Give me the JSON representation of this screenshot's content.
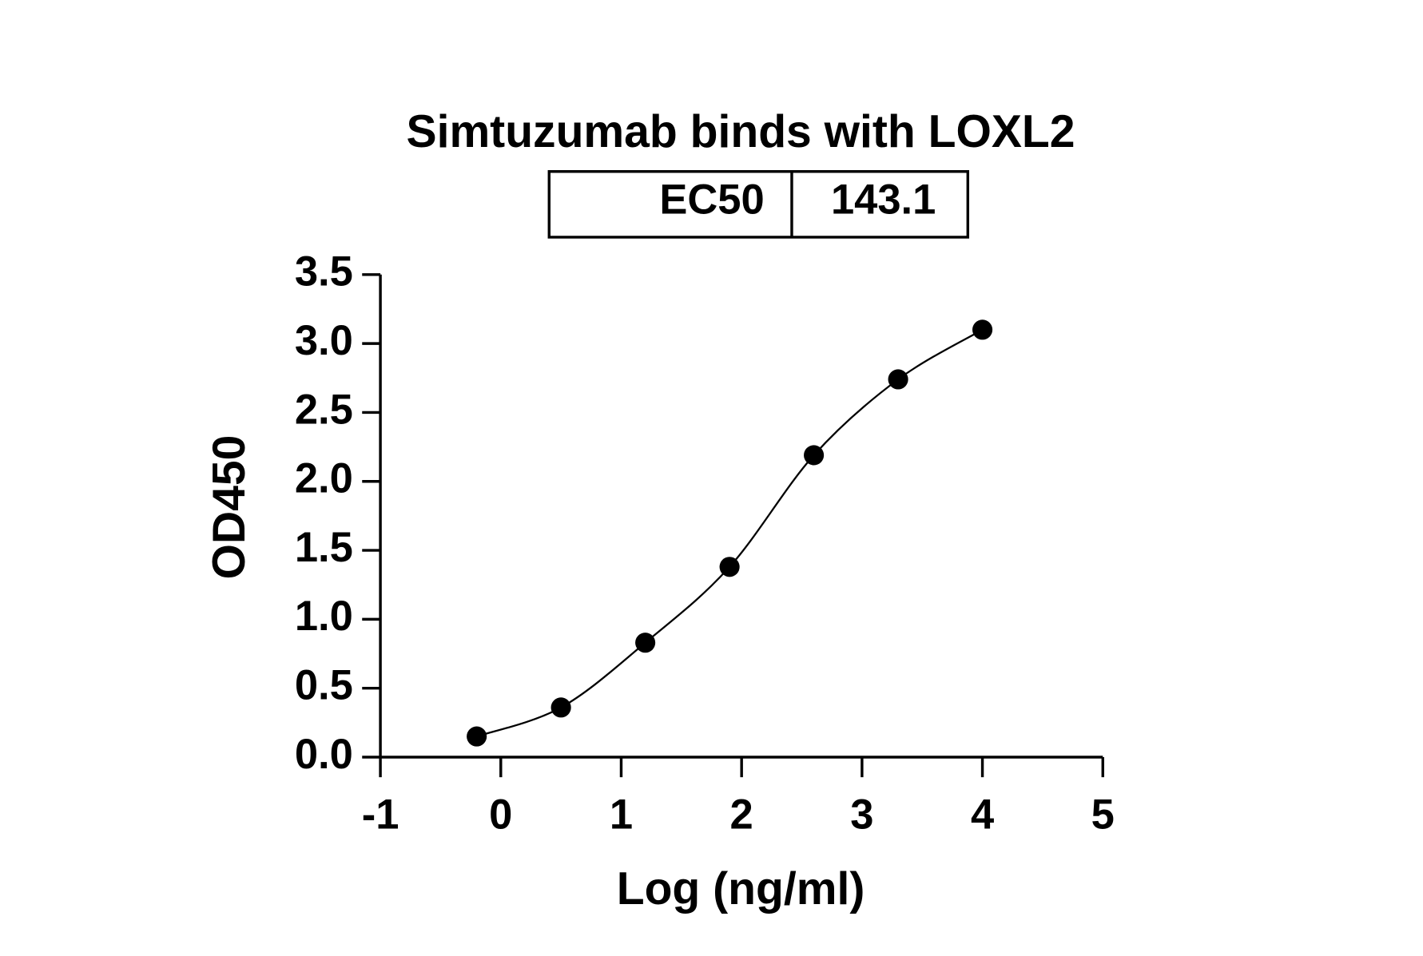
{
  "chart_data": {
    "type": "scatter",
    "title": "Simtuzumab binds with LOXL2",
    "ec50_label": "EC50",
    "ec50": 143.1,
    "x_label": "Log (ng/ml)",
    "y_label": "OD450",
    "fit_curve": true,
    "series": [
      {
        "color": "#000000",
        "x": [
          -0.2,
          0.5,
          1.2,
          1.9,
          2.6,
          3.3,
          4.0
        ],
        "values": [
          0.15,
          0.36,
          0.83,
          1.38,
          2.19,
          2.74,
          3.1
        ]
      }
    ],
    "xlim": [
      -1,
      5
    ],
    "xticks": [
      -1,
      0,
      1,
      2,
      3,
      4,
      5
    ],
    "ylim": [
      0,
      3.5
    ],
    "yticks": [
      {
        "value": 0,
        "label": "0.0"
      },
      0.5,
      {
        "value": 1,
        "label": "1.0"
      },
      1.5,
      {
        "value": 2,
        "label": "2.0"
      },
      2.5,
      {
        "value": 3,
        "label": "3.0"
      },
      3.5
    ]
  }
}
